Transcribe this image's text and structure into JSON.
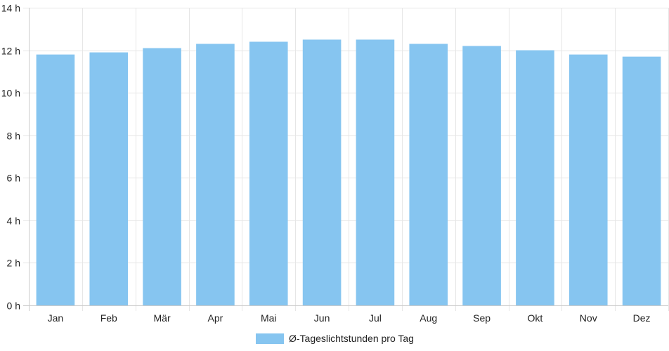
{
  "chart_data": {
    "type": "bar",
    "categories": [
      "Jan",
      "Feb",
      "Mär",
      "Apr",
      "Mai",
      "Jun",
      "Jul",
      "Aug",
      "Sep",
      "Okt",
      "Nov",
      "Dez"
    ],
    "series": [
      {
        "name": "Ø-Tageslichtstunden pro Tag",
        "values": [
          11.8,
          11.9,
          12.1,
          12.3,
          12.4,
          12.5,
          12.5,
          12.3,
          12.2,
          12.0,
          11.8,
          11.7
        ],
        "color": "#86c5f0"
      }
    ],
    "ylim": [
      0,
      14
    ],
    "y_ticks": [
      0,
      2,
      4,
      6,
      8,
      10,
      12,
      14
    ],
    "y_tick_suffix": " h",
    "grid": true,
    "legend_position": "bottom",
    "grid_color": "#e6e6e6",
    "axis_color": "#cccccc"
  }
}
